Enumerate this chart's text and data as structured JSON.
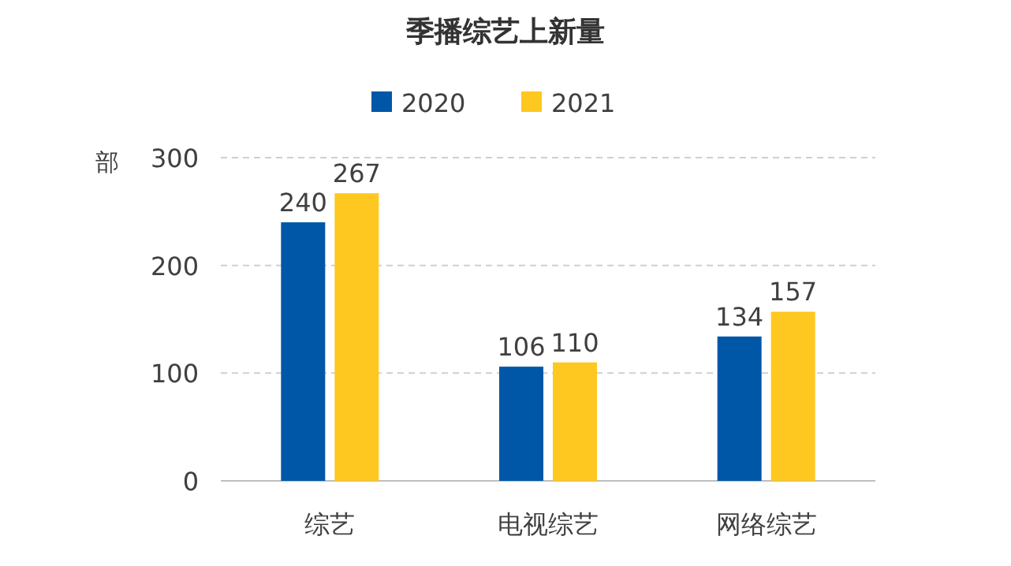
{
  "chart_data": {
    "type": "bar",
    "title": "季播综艺上新量",
    "ylabel": "部",
    "categories": [
      "综艺",
      "电视综艺",
      "网络综艺"
    ],
    "series": [
      {
        "name": "2020",
        "color": "#0057a8",
        "values": [
          240,
          106,
          134
        ]
      },
      {
        "name": "2021",
        "color": "#ffc820",
        "values": [
          267,
          110,
          157
        ]
      }
    ],
    "ylim": [
      0,
      300
    ],
    "yticks": [
      0,
      100,
      200,
      300
    ],
    "grid": "y",
    "legend": "top",
    "data_labels": true
  }
}
